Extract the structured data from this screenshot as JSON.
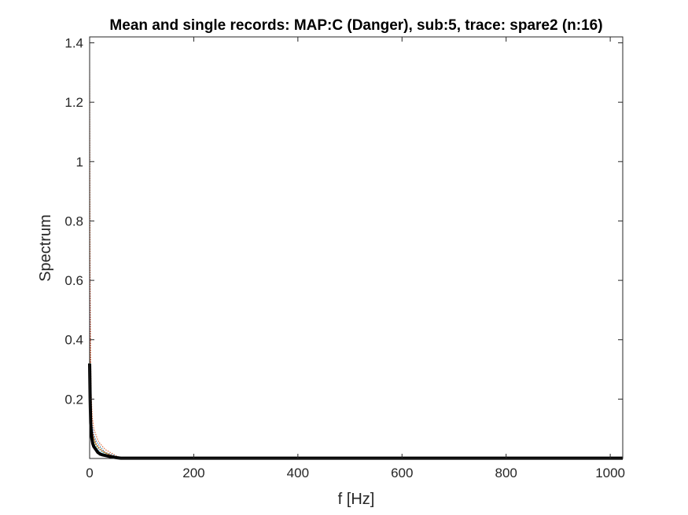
{
  "chart_data": {
    "type": "line",
    "title": "Mean and single records: MAP:C (Danger), sub:5, trace: spare2 (n:16)",
    "xlabel": "f [Hz]",
    "ylabel": "Spectrum",
    "xlim": [
      0,
      1024
    ],
    "ylim": [
      0,
      1.42
    ],
    "x_ticks": [
      0,
      200,
      400,
      600,
      800,
      1000
    ],
    "x_tick_labels": [
      "0",
      "200",
      "400",
      "600",
      "800",
      "1000"
    ],
    "y_ticks": [
      0.2,
      0.4,
      0.6,
      0.8,
      1,
      1.2,
      1.4
    ],
    "y_tick_labels": [
      "0.2",
      "0.4",
      "0.6",
      "0.8",
      "1",
      "1.2",
      "1.4"
    ],
    "grid": false,
    "series": [
      {
        "role": "single-record",
        "color": "#d95319",
        "x": [
          0,
          1,
          2,
          3,
          5,
          8,
          12,
          16,
          20,
          25,
          30,
          40,
          50,
          60,
          100,
          1024
        ],
        "values": [
          1.35,
          0.6,
          0.35,
          0.22,
          0.14,
          0.1,
          0.08,
          0.06,
          0.05,
          0.04,
          0.03,
          0.02,
          0.01,
          0.002,
          0.001,
          0.001
        ]
      },
      {
        "role": "single-record",
        "color": "#0072bd",
        "x": [
          0,
          1,
          2,
          3,
          5,
          8,
          12,
          16,
          20,
          25,
          30,
          40,
          50,
          60,
          100,
          1024
        ],
        "values": [
          0.55,
          0.3,
          0.2,
          0.15,
          0.11,
          0.08,
          0.06,
          0.05,
          0.04,
          0.03,
          0.02,
          0.015,
          0.008,
          0.002,
          0.001,
          0.001
        ]
      },
      {
        "role": "single-record",
        "color": "#edb120",
        "x": [
          0,
          1,
          2,
          3,
          5,
          8,
          12,
          16,
          20,
          25,
          30,
          40,
          50,
          60,
          100,
          1024
        ],
        "values": [
          0.45,
          0.28,
          0.18,
          0.13,
          0.09,
          0.07,
          0.05,
          0.04,
          0.035,
          0.025,
          0.02,
          0.012,
          0.006,
          0.002,
          0.001,
          0.001
        ]
      },
      {
        "role": "single-record",
        "color": "#77ac30",
        "x": [
          0,
          1,
          2,
          3,
          5,
          8,
          12,
          16,
          20,
          25,
          30,
          40,
          50,
          60,
          100,
          1024
        ],
        "values": [
          0.38,
          0.24,
          0.16,
          0.12,
          0.08,
          0.06,
          0.045,
          0.035,
          0.03,
          0.022,
          0.018,
          0.01,
          0.005,
          0.002,
          0.001,
          0.001
        ]
      },
      {
        "role": "single-record",
        "color": "#4dbeee",
        "x": [
          0,
          1,
          2,
          3,
          5,
          8,
          12,
          16,
          20,
          25,
          30,
          40,
          50,
          60,
          100,
          1024
        ],
        "values": [
          0.3,
          0.2,
          0.14,
          0.1,
          0.07,
          0.05,
          0.04,
          0.03,
          0.025,
          0.02,
          0.015,
          0.008,
          0.004,
          0.002,
          0.001,
          0.001
        ]
      },
      {
        "role": "single-record",
        "color": "#a2142f",
        "x": [
          0,
          1,
          2,
          3,
          5,
          8,
          12,
          16,
          20,
          25,
          30,
          40,
          50,
          60,
          100,
          1024
        ],
        "values": [
          0.7,
          0.35,
          0.22,
          0.16,
          0.1,
          0.07,
          0.05,
          0.04,
          0.03,
          0.025,
          0.02,
          0.012,
          0.006,
          0.002,
          0.001,
          0.001
        ]
      },
      {
        "role": "mean",
        "color": "#000000",
        "x": [
          0,
          1,
          2,
          3,
          4,
          5,
          6,
          8,
          10,
          12,
          14,
          16,
          18,
          20,
          25,
          30,
          40,
          50,
          60,
          100,
          1024
        ],
        "values": [
          0.32,
          0.2,
          0.12,
          0.09,
          0.07,
          0.06,
          0.05,
          0.04,
          0.035,
          0.03,
          0.025,
          0.02,
          0.018,
          0.015,
          0.012,
          0.01,
          0.006,
          0.003,
          0.001,
          0.001,
          0.001
        ]
      }
    ]
  }
}
